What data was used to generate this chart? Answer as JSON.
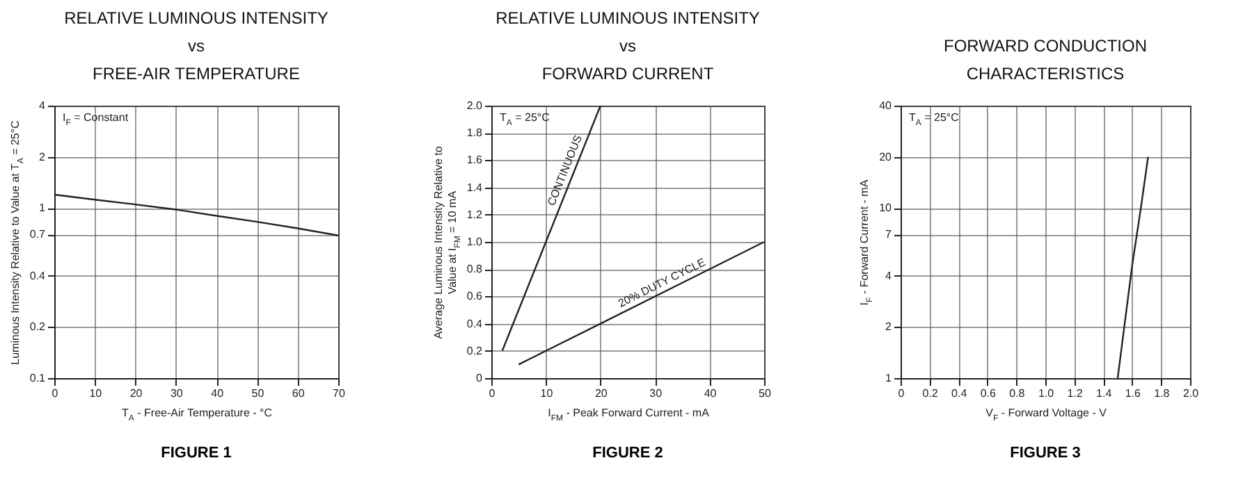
{
  "chart_data": [
    {
      "type": "line",
      "title": "RELATIVE LUMINOUS INTENSITY\nvs\nFREE-AIR TEMPERATURE",
      "xlabel": "T$_{A}$ - Free-Air Temperature - °C",
      "ylabel": "Luminous Intensity Relative to Value at T$_{A}$ = 25°C",
      "xlim": [
        0,
        70
      ],
      "xticks": [
        0,
        10,
        20,
        30,
        40,
        50,
        60,
        70
      ],
      "ylim": [
        0.1,
        4
      ],
      "yticks": [
        0.1,
        0.2,
        0.4,
        0.7,
        1,
        2,
        4
      ],
      "log": "y",
      "grid": true,
      "series": [
        {
          "color": "#222222",
          "x": [
            0,
            10,
            20,
            30,
            40,
            50,
            60,
            70
          ],
          "values": [
            1.2,
            1.12,
            1.05,
            0.98,
            0.9,
            0.83,
            0.76,
            0.69
          ]
        }
      ],
      "annotations": [
        "I$_{F}$ = Constant",
        "FIGURE 1"
      ]
    },
    {
      "type": "line",
      "title": "RELATIVE LUMINOUS INTENSITY\nvs\nFORWARD CURRENT",
      "xlabel": "I$_{FM}$ - Peak Forward Current - mA",
      "ylabel": "Average Luminous Intensity Relative to\nValue at I$_{FM}$ = 10 mA",
      "xlim": [
        0,
        50
      ],
      "xticks": [
        0,
        10,
        20,
        30,
        40,
        50
      ],
      "ylim": [
        0,
        2
      ],
      "yticks": [
        0,
        0.2,
        0.4,
        0.6,
        0.8,
        {
          "value": 1,
          "label": "1.0"
        },
        1.2,
        1.4,
        1.6,
        1.8,
        {
          "value": 2,
          "label": "2.0"
        }
      ],
      "grid": true,
      "series": [
        {
          "color": "#222222",
          "x": [
            2,
            10,
            20
          ],
          "values": [
            0.2,
            1.0,
            2.0
          ]
        },
        {
          "color": "#222222",
          "x": [
            5,
            10,
            20,
            40,
            50
          ],
          "values": [
            0.1,
            0.2,
            0.4,
            0.8,
            1.0
          ]
        }
      ],
      "annotations": [
        "T$_{A}$ = 25°C",
        {
          "text": "CONTINUOUS",
          "x": 15,
          "y": 1.5
        },
        {
          "text": "20% DUTY CYCLE",
          "x": 32,
          "y": 0.64
        },
        "FIGURE 2"
      ]
    },
    {
      "type": "line",
      "title": "FORWARD CONDUCTION\nCHARACTERISTICS",
      "xlabel": "V$_{F}$ - Forward Voltage - V",
      "ylabel": "I$_{F}$ - Forward Current - mA",
      "xlim": [
        0,
        2
      ],
      "xticks": [
        0,
        0.2,
        0.4,
        0.6,
        0.8,
        {
          "value": 1,
          "label": "1.0"
        },
        1.2,
        1.4,
        1.6,
        1.8,
        {
          "value": 2,
          "label": "2.0"
        }
      ],
      "ylim": [
        1,
        40
      ],
      "yticks": [
        1,
        2,
        4,
        7,
        10,
        20,
        40
      ],
      "log": "y",
      "grid": true,
      "series": [
        {
          "color": "#222222",
          "x": [
            1.5,
            1.6,
            1.66,
            1.71
          ],
          "values": [
            1,
            4.6,
            10,
            20
          ]
        }
      ],
      "annotations": [
        "T$_{A}$ = 25°C",
        "FIGURE 3"
      ]
    }
  ]
}
